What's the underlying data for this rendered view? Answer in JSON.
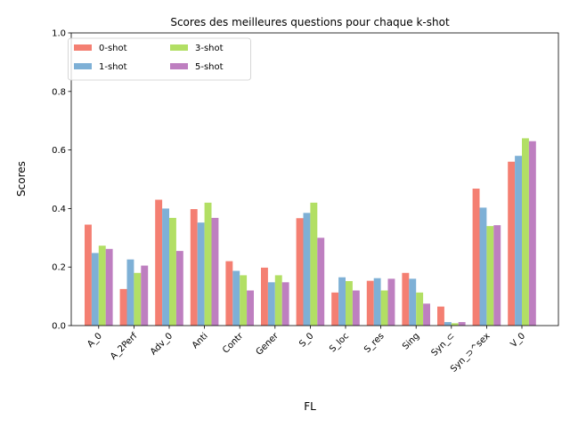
{
  "chart_data": {
    "type": "bar",
    "title": "Scores des meilleures questions pour chaque k-shot",
    "xlabel": "FL",
    "ylabel": "Scores",
    "ylim": [
      0,
      1.0
    ],
    "yticks": [
      0.0,
      0.2,
      0.4,
      0.6,
      0.8,
      1.0
    ],
    "ytick_labels": [
      "0.0",
      "0.2",
      "0.4",
      "0.6",
      "0.8",
      "1.0"
    ],
    "grid": false,
    "legend_position": "top-left",
    "categories": [
      "A_0",
      "A_2Perf",
      "Adv_0",
      "Anti",
      "Contr",
      "Gener",
      "S_0",
      "S_loc",
      "S_res",
      "Sing",
      "Syn_⊂",
      "Syn_⊃^sex",
      "V_0"
    ],
    "series": [
      {
        "name": "0-shot",
        "color": "#f47f72",
        "values": [
          0.345,
          0.125,
          0.43,
          0.398,
          0.22,
          0.198,
          0.367,
          0.113,
          0.153,
          0.18,
          0.065,
          0.468,
          0.56
        ]
      },
      {
        "name": "1-shot",
        "color": "#7eb0d6",
        "values": [
          0.248,
          0.226,
          0.4,
          0.352,
          0.187,
          0.148,
          0.385,
          0.165,
          0.162,
          0.16,
          0.012,
          0.403,
          0.58
        ]
      },
      {
        "name": "3-shot",
        "color": "#b2df64",
        "values": [
          0.273,
          0.18,
          0.368,
          0.42,
          0.172,
          0.172,
          0.42,
          0.152,
          0.12,
          0.113,
          0.008,
          0.34,
          0.64
        ]
      },
      {
        "name": "5-shot",
        "color": "#be7fc0",
        "values": [
          0.262,
          0.205,
          0.255,
          0.368,
          0.12,
          0.148,
          0.3,
          0.12,
          0.16,
          0.075,
          0.012,
          0.343,
          0.63
        ]
      }
    ]
  }
}
